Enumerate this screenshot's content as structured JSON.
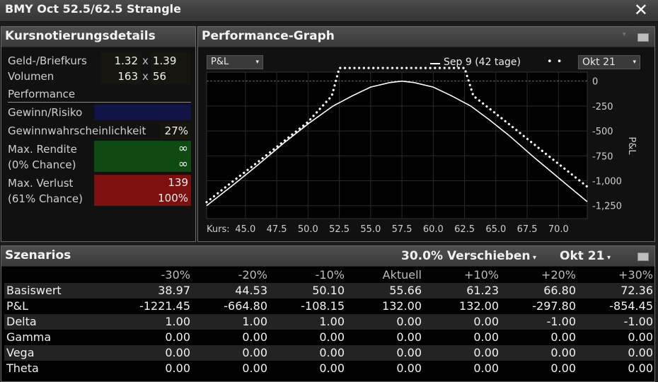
{
  "window": {
    "title": "BMY Oct 52.5/62.5 Strangle",
    "close_glyph": "✕"
  },
  "quote_panel": {
    "title": "Kursnotierungsdetails",
    "bid_ask_label": "Geld-/Briefkurs",
    "bid": "1.32",
    "ask": "1.39",
    "separator": "x",
    "volume_label": "Volumen",
    "bid_volume": "163",
    "ask_volume": "56",
    "performance_label": "Performance",
    "gain_risk_label": "Gewinn/Risiko",
    "gain_risk_value": "",
    "win_prob_label": "Gewinnwahrscheinlichkeit",
    "win_prob_value": "27%",
    "max_return_label": "Max. Rendite",
    "max_return_chance": "(0% Chance)",
    "max_return_value": "∞",
    "max_return_value2": "∞",
    "max_loss_label": "Max. Verlust",
    "max_loss_chance": "(61% Chance)",
    "max_loss_value": "139",
    "max_loss_pct": "100%",
    "colors": {
      "gain_risk_bg": "#101446",
      "return_bg": "#0e4a12",
      "loss_bg": "#7e0f0f",
      "value_bg": "#16160e"
    }
  },
  "graph_panel": {
    "title": "Performance-Graph",
    "metric_dropdown": "P&L",
    "legend_solid": "Sep 9 (42 tage)",
    "legend_dotted_glyph": "• •",
    "expiry_dropdown": "Okt 21",
    "kurs_label": "Kurs:",
    "chart_data": {
      "type": "line",
      "ylabel": "P&L",
      "xlim": [
        41.9,
        72.3
      ],
      "ylim": [
        -1380,
        90
      ],
      "x_ticks": [
        "45.0",
        "47.5",
        "50.0",
        "52.5",
        "55.0",
        "57.5",
        "60.0",
        "62.5",
        "65.0",
        "67.5",
        "70.0"
      ],
      "x_tick_values": [
        45,
        47.5,
        50,
        52.5,
        55,
        57.5,
        60,
        62.5,
        65,
        67.5,
        70
      ],
      "y_ticks": [
        "0",
        "-250",
        "-500",
        "-750",
        "-1,000",
        "-1,250"
      ],
      "y_tick_values": [
        0,
        -250,
        -500,
        -750,
        -1000,
        -1250
      ],
      "series": [
        {
          "name": "Sep 9 (42 tage)",
          "style": "solid",
          "x": [
            41.9,
            44,
            46,
            48,
            50,
            52,
            53.5,
            55,
            56.5,
            57.5,
            58.5,
            60,
            61.5,
            63,
            64.5,
            66,
            68,
            70,
            72.3
          ],
          "y": [
            -1250,
            -1045,
            -840,
            -628,
            -430,
            -250,
            -150,
            -60,
            -15,
            0,
            -15,
            -60,
            -150,
            -250,
            -390,
            -540,
            -760,
            -970,
            -1210
          ]
        },
        {
          "name": "Okt 21",
          "style": "dotted",
          "x": [
            41.9,
            44,
            46,
            48,
            50,
            51.9,
            52.5,
            62.5,
            63.2,
            65,
            67,
            69,
            71,
            72.3
          ],
          "y": [
            -1215,
            -1006,
            -812,
            -610,
            -410,
            -148,
            132,
            132,
            -148,
            -326,
            -528,
            -730,
            -930,
            -1060
          ]
        }
      ]
    }
  },
  "scenario_panel": {
    "title": "Szenarios",
    "shift_dropdown": "30.0% Verschieben",
    "expiry_dropdown": "Okt 21",
    "columns": [
      "-30%",
      "-20%",
      "-10%",
      "Aktuell",
      "+10%",
      "+20%",
      "+30%"
    ],
    "rows": [
      {
        "name": "Basiswert",
        "values": [
          "38.97",
          "44.53",
          "50.10",
          "55.66",
          "61.23",
          "66.80",
          "72.36"
        ]
      },
      {
        "name": "P&L",
        "values": [
          "-1221.45",
          "-664.80",
          "-108.15",
          "132.00",
          "132.00",
          "-297.80",
          "-854.45"
        ]
      },
      {
        "name": "Delta",
        "values": [
          "1.00",
          "1.00",
          "1.00",
          "0.00",
          "0.00",
          "-1.00",
          "-1.00"
        ]
      },
      {
        "name": "Gamma",
        "values": [
          "0.00",
          "0.00",
          "0.00",
          "0.00",
          "0.00",
          "0.00",
          "0.00"
        ]
      },
      {
        "name": "Vega",
        "values": [
          "0.00",
          "0.00",
          "0.00",
          "0.00",
          "0.00",
          "0.00",
          "0.00"
        ]
      },
      {
        "name": "Theta",
        "values": [
          "0.00",
          "0.00",
          "0.00",
          "0.00",
          "0.00",
          "0.00",
          "0.00"
        ]
      }
    ]
  }
}
